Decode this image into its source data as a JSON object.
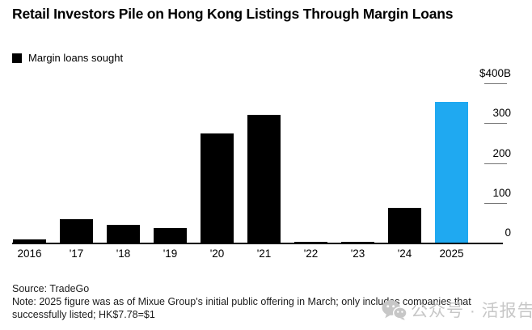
{
  "title": "Retail Investors Pile on Hong Kong Listings Through Margin Loans",
  "legend": {
    "label": "Margin loans sought",
    "swatch_color": "#000000"
  },
  "chart_data": {
    "type": "bar",
    "title": "Retail Investors Pile on Hong Kong Listings Through Margin Loans",
    "categories": [
      "2016",
      "'17",
      "'18",
      "'19",
      "'20",
      "'21",
      "'22",
      "'23",
      "'24",
      "2025"
    ],
    "values": [
      8,
      58,
      45,
      37,
      275,
      320,
      2,
      3,
      88,
      353
    ],
    "series_name": "Margin loans sought",
    "unit": "USD billions",
    "ylim": [
      0,
      400
    ],
    "yticks": [
      0,
      100,
      200,
      300,
      400
    ],
    "ytick_labels": [
      "0",
      "100",
      "200",
      "300",
      "$400B"
    ],
    "axis_side": "right",
    "grid": false,
    "legend_position": "top-left",
    "bar_color": "#000000",
    "highlight_category": "2025",
    "highlight_color": "#1fa9f1"
  },
  "footer": {
    "source": "Source: TradeGo",
    "note": "Note: 2025 figure was as of Mixue Group's initial public offering in March; only includes companies that successfully listed; HK$7.78=$1"
  },
  "watermark": {
    "icon": "wechat-icon",
    "text": "公众号 · 活报告",
    "color": "#c7c7c7"
  }
}
